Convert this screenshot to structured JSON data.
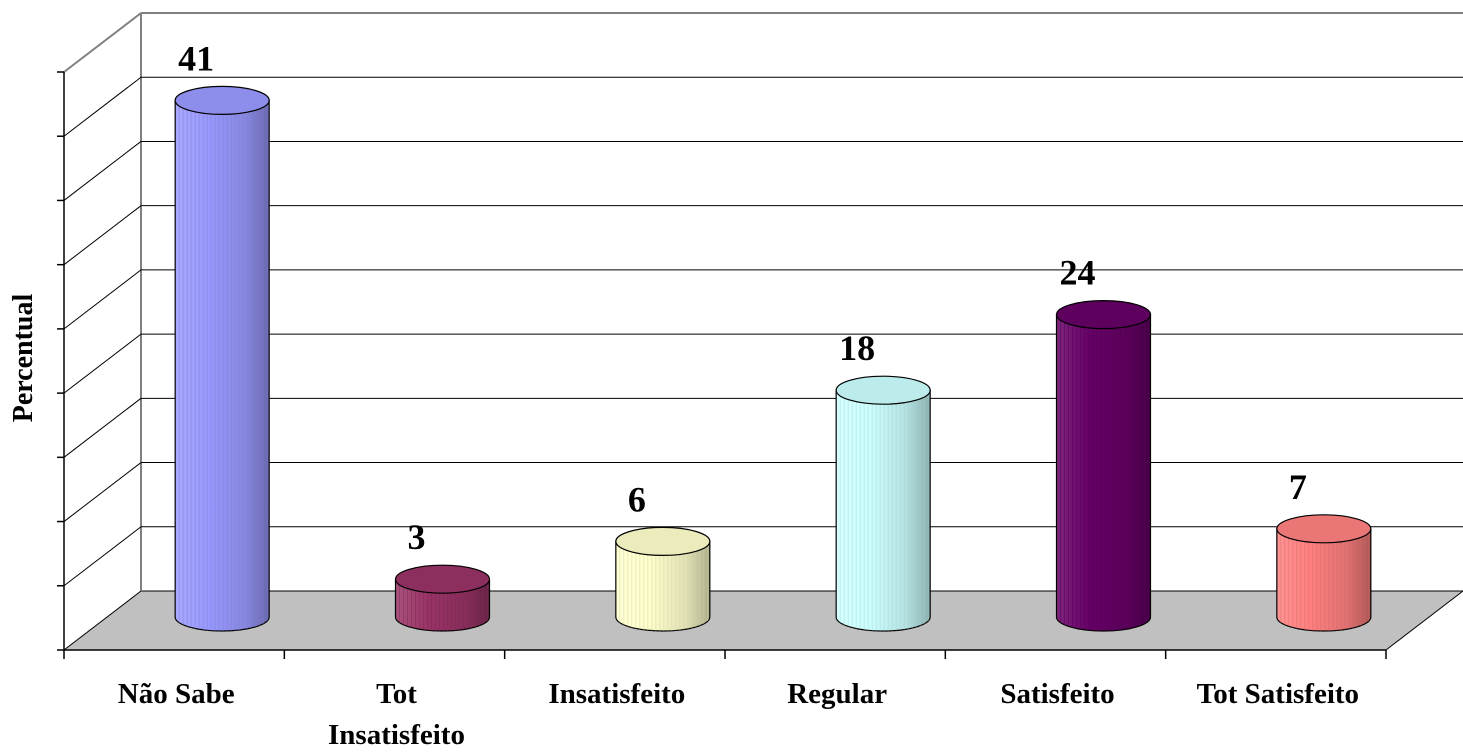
{
  "chart_data": {
    "type": "bar",
    "categories": [
      "Não Sabe",
      "Tot Insatisfeito",
      "Insatisfeito",
      "Regular",
      "Satisfeito",
      "Tot Satisfeito"
    ],
    "category_lines": [
      [
        "Não Sabe"
      ],
      [
        "Tot",
        "Insatisfeito"
      ],
      [
        "Insatisfeito"
      ],
      [
        "Regular"
      ],
      [
        "Satisfeito"
      ],
      [
        "Tot Satisfeito"
      ]
    ],
    "values": [
      41,
      3,
      6,
      18,
      24,
      7
    ],
    "value_labels": [
      "41",
      "3",
      "6",
      "18",
      "24",
      "7"
    ],
    "ylabel": "Percentual",
    "ylim": [
      0,
      45
    ],
    "grid": true,
    "legend": "none",
    "bar_shape": "cylinder",
    "colors": [
      "#9999ff",
      "#993366",
      "#ffffcc",
      "#ccffff",
      "#660066",
      "#ff8080"
    ]
  }
}
